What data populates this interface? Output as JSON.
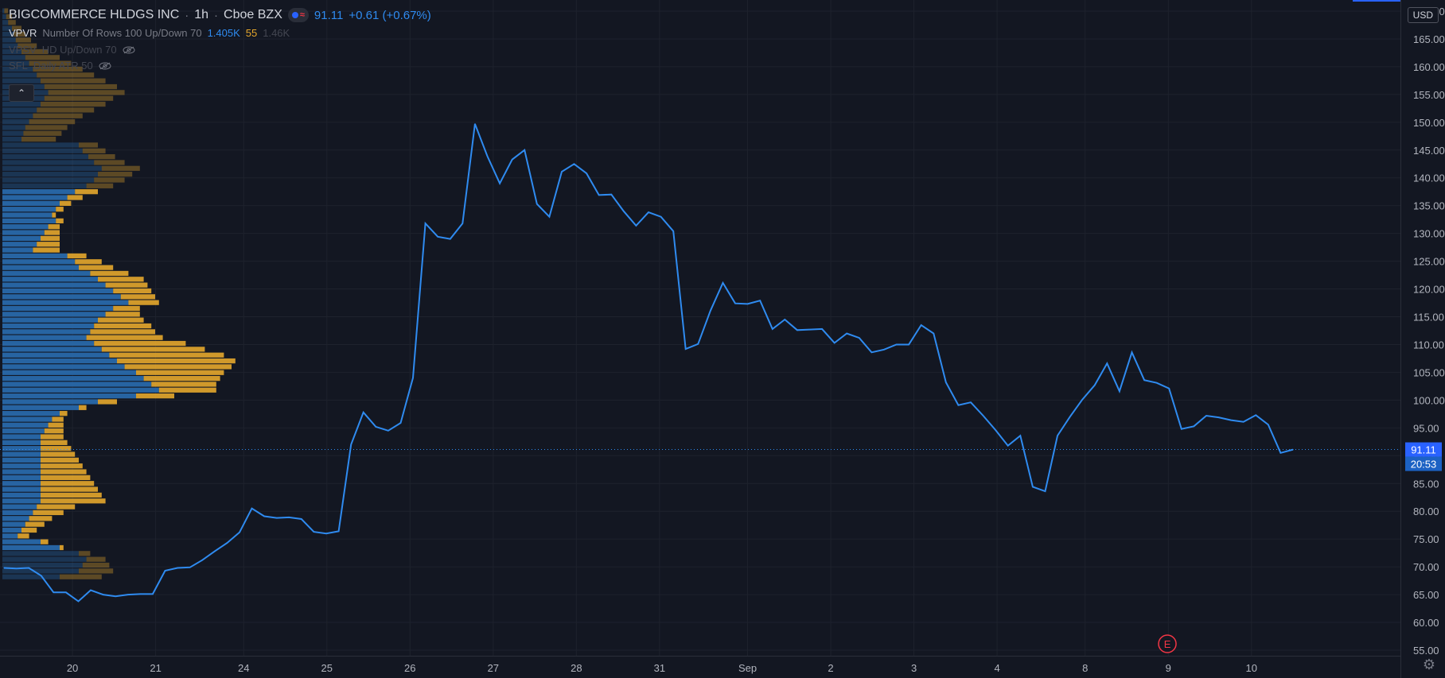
{
  "header": {
    "symbol": "BIGCOMMERCE HLDGS INC",
    "interval": "1h",
    "exchange": "Cboe BZX",
    "last_price": "91.11",
    "change": "+0.61 (+0.67%)"
  },
  "indicators": [
    {
      "name": "VPVR",
      "params": "Number Of Rows 100 Up/Down 70",
      "values": [
        "1.405K",
        "55",
        "1.46K"
      ]
    },
    {
      "name": "VPSV",
      "params": "HD Up/Down 70",
      "values": []
    },
    {
      "name": "SFL",
      "params": "Daily ATR 50",
      "values": []
    }
  ],
  "price_axis": {
    "currency": "USD",
    "current_price_label": "91.11",
    "countdown_label": "20:53"
  },
  "event_marker": "E",
  "colors": {
    "background": "#131722",
    "line": "#2f8bf0",
    "up_volume": "#2a6db0",
    "down_volume": "#e6a72c",
    "grid": "#1e222d"
  },
  "chart_data": {
    "type": "line",
    "title": "BIGCOMMERCE HLDGS INC",
    "ylim": [
      54,
      172
    ],
    "yticks": [
      55,
      60,
      65,
      70,
      75,
      80,
      85,
      90,
      95,
      100,
      105,
      110,
      115,
      120,
      125,
      130,
      135,
      140,
      145,
      150,
      155,
      160,
      165,
      170
    ],
    "xlim": [
      0,
      135
    ],
    "xticks": [
      {
        "x": 7,
        "label": "20"
      },
      {
        "x": 15.5,
        "label": "21"
      },
      {
        "x": 24.5,
        "label": "24"
      },
      {
        "x": 33,
        "label": "25"
      },
      {
        "x": 41.5,
        "label": "26"
      },
      {
        "x": 50,
        "label": "27"
      },
      {
        "x": 58.5,
        "label": "28"
      },
      {
        "x": 67,
        "label": "31"
      },
      {
        "x": 76,
        "label": "Sep"
      },
      {
        "x": 84.5,
        "label": "2"
      },
      {
        "x": 93,
        "label": "3"
      },
      {
        "x": 101.5,
        "label": "4"
      },
      {
        "x": 110.5,
        "label": "8"
      },
      {
        "x": 119,
        "label": "9"
      },
      {
        "x": 127.5,
        "label": "10"
      }
    ],
    "series": [
      {
        "values": [
          69.8,
          69.7,
          69.8,
          68.4,
          65.4,
          65.4,
          63.8,
          65.8,
          65.0,
          64.7,
          65.0,
          65.1,
          65.1,
          69.3,
          69.8,
          69.9,
          71.2,
          72.8,
          74.3,
          76.2,
          80.5,
          79.1,
          78.8,
          78.9,
          78.6,
          76.3,
          76.0,
          76.4,
          92.0,
          97.8,
          95.2,
          94.5,
          95.9,
          104.0,
          131.8,
          129.4,
          129.0,
          131.8,
          149.7,
          143.9,
          139.0,
          143.3,
          145.0,
          135.3,
          133.0,
          141.1,
          142.5,
          140.8,
          136.9,
          137.0,
          134.0,
          131.4,
          133.8,
          133.0,
          130.4,
          109.2,
          110.1,
          116.1,
          121.1,
          117.4,
          117.3,
          117.9,
          112.8,
          114.5,
          112.6,
          112.7,
          112.8,
          110.3,
          112.0,
          111.2,
          108.6,
          109.1,
          110.0,
          110.0,
          113.5,
          112.0,
          103.2,
          99.1,
          99.6,
          97.2,
          94.6,
          91.8,
          93.6,
          84.4,
          83.6,
          93.6,
          97.0,
          100.1,
          102.7,
          106.6,
          101.6,
          108.6,
          103.6,
          103.1,
          102.1,
          94.8,
          95.3,
          97.2,
          96.9,
          96.4,
          96.1,
          97.3,
          95.6,
          90.5,
          91.1
        ]
      }
    ],
    "volume_profile": {
      "levels_from": 170.5,
      "row_step": 1.05,
      "up": [
        1,
        2,
        3,
        5,
        6,
        7,
        8,
        10,
        12,
        14,
        16,
        18,
        20,
        22,
        24,
        22,
        20,
        18,
        16,
        14,
        12,
        11,
        10,
        40,
        42,
        45,
        48,
        52,
        50,
        48,
        44,
        38,
        34,
        30,
        28,
        26,
        28,
        24,
        22,
        20,
        18,
        16,
        34,
        38,
        40,
        46,
        50,
        54,
        58,
        62,
        66,
        58,
        54,
        50,
        48,
        46,
        44,
        48,
        52,
        56,
        60,
        64,
        70,
        74,
        78,
        82,
        70,
        50,
        40,
        30,
        26,
        24,
        22,
        20,
        20,
        20,
        20,
        20,
        20,
        20,
        20,
        20,
        20,
        20,
        20,
        18,
        16,
        14,
        12,
        10,
        8,
        20,
        30,
        40,
        44,
        42,
        40,
        30
      ],
      "down": [
        2,
        3,
        4,
        5,
        6,
        8,
        10,
        14,
        18,
        22,
        26,
        30,
        34,
        38,
        40,
        36,
        34,
        30,
        26,
        24,
        22,
        20,
        18,
        10,
        12,
        14,
        16,
        20,
        18,
        16,
        14,
        12,
        8,
        6,
        4,
        2,
        4,
        6,
        8,
        10,
        12,
        14,
        10,
        14,
        18,
        20,
        24,
        22,
        20,
        18,
        16,
        14,
        18,
        24,
        30,
        34,
        40,
        48,
        54,
        60,
        62,
        56,
        46,
        40,
        34,
        30,
        20,
        10,
        4,
        4,
        6,
        8,
        10,
        12,
        14,
        16,
        18,
        20,
        22,
        24,
        26,
        28,
        30,
        32,
        34,
        20,
        16,
        12,
        10,
        8,
        6,
        4,
        2,
        6,
        10,
        14,
        18,
        22
      ]
    },
    "last_value": 91.11,
    "grid": true
  }
}
